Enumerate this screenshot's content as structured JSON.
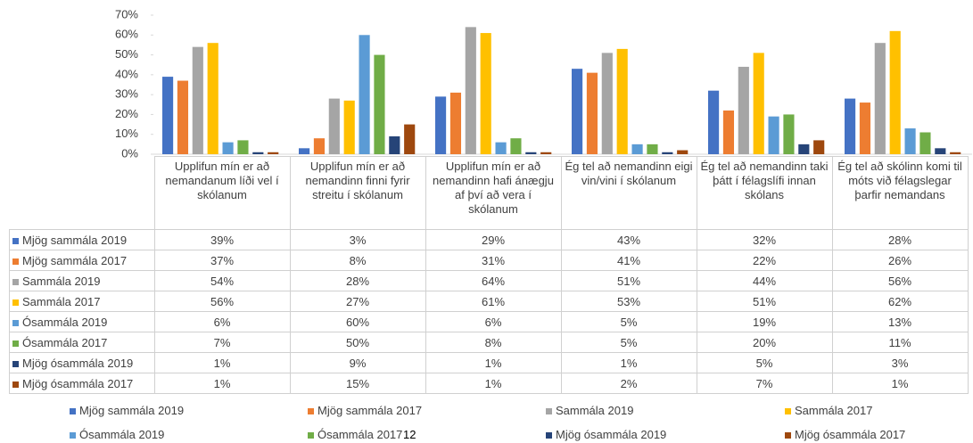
{
  "page_number": "12",
  "chart_data": {
    "type": "bar",
    "categories": [
      "Upplifun mín er að nemandanum líði vel í skólanum",
      "Upplifun mín er að nemandinn finni fyrir streitu í skólanum",
      "Upplifun mín er að nemandinn hafi ánægju af því að vera í skólanum",
      "Ég tel að nemandinn eigi vin/vini í skólanum",
      "Ég tel að nemandinn taki þátt í félagslífi innan skólans",
      "Ég tel að skólinn komi til móts við félagslegar þarfir nemandans"
    ],
    "ylim": [
      0,
      70
    ],
    "yticks": [
      {
        "value": 0,
        "label": "0%"
      },
      {
        "value": 10,
        "label": "10%"
      },
      {
        "value": 20,
        "label": "20%"
      },
      {
        "value": 30,
        "label": "30%"
      },
      {
        "value": 40,
        "label": "40%"
      },
      {
        "value": 50,
        "label": "50%"
      },
      {
        "value": 60,
        "label": "60%"
      },
      {
        "value": 70,
        "label": "70%"
      }
    ],
    "series": [
      {
        "name": "Mjög sammála 2019",
        "color": "#4472c4",
        "values": [
          39,
          3,
          29,
          43,
          32,
          28
        ],
        "value_labels": [
          "39%",
          "3%",
          "29%",
          "43%",
          "32%",
          "28%"
        ]
      },
      {
        "name": "Mjög sammála 2017",
        "color": "#ed7d31",
        "values": [
          37,
          8,
          31,
          41,
          22,
          26
        ],
        "value_labels": [
          "37%",
          "8%",
          "31%",
          "41%",
          "22%",
          "26%"
        ]
      },
      {
        "name": "Sammála 2019",
        "color": "#a5a5a5",
        "values": [
          54,
          28,
          64,
          51,
          44,
          56
        ],
        "value_labels": [
          "54%",
          "28%",
          "64%",
          "51%",
          "44%",
          "56%"
        ]
      },
      {
        "name": "Sammála 2017",
        "color": "#ffc000",
        "values": [
          56,
          27,
          61,
          53,
          51,
          62
        ],
        "value_labels": [
          "56%",
          "27%",
          "61%",
          "53%",
          "51%",
          "62%"
        ]
      },
      {
        "name": "Ósammála 2019",
        "color": "#5b9bd5",
        "values": [
          6,
          60,
          6,
          5,
          19,
          13
        ],
        "value_labels": [
          "6%",
          "60%",
          "6%",
          "5%",
          "19%",
          "13%"
        ]
      },
      {
        "name": "Ósammála 2017",
        "color": "#70ad47",
        "values": [
          7,
          50,
          8,
          5,
          20,
          11
        ],
        "value_labels": [
          "7%",
          "50%",
          "8%",
          "5%",
          "20%",
          "11%"
        ]
      },
      {
        "name": "Mjög ósammála 2019",
        "color": "#264478",
        "values": [
          1,
          9,
          1,
          1,
          5,
          3
        ],
        "value_labels": [
          "1%",
          "9%",
          "1%",
          "1%",
          "5%",
          "3%"
        ]
      },
      {
        "name": "Mjög ósammála 2017",
        "color": "#9e480e",
        "values": [
          1,
          15,
          1,
          2,
          7,
          1
        ],
        "value_labels": [
          "1%",
          "15%",
          "1%",
          "2%",
          "7%",
          "1%"
        ]
      }
    ]
  }
}
